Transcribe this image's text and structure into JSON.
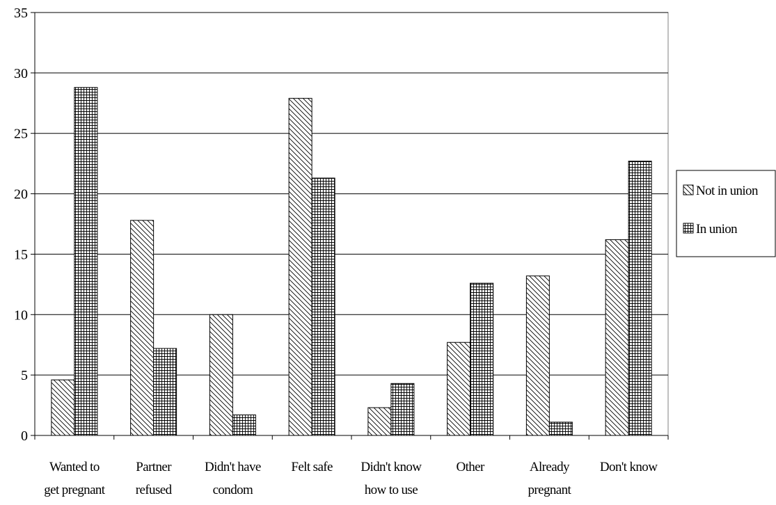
{
  "chart_data": {
    "type": "bar",
    "title": "",
    "xlabel": "",
    "ylabel": "",
    "ylim": [
      0,
      35
    ],
    "yticks": [
      0,
      5,
      10,
      15,
      20,
      25,
      30,
      35
    ],
    "grid": true,
    "legend_position": "right",
    "categories": [
      [
        "Wanted to",
        "get pregnant"
      ],
      [
        "Partner",
        "refused"
      ],
      [
        "Didn't have",
        "condom"
      ],
      [
        "Felt safe"
      ],
      [
        "Didn't know",
        "how to use"
      ],
      [
        "Other"
      ],
      [
        "Already",
        "pregnant"
      ],
      [
        "Don't know"
      ]
    ],
    "series": [
      {
        "name": "Not in union",
        "pattern": "diagonal-hatch",
        "values": [
          4.6,
          17.8,
          10.0,
          27.9,
          2.3,
          7.7,
          13.2,
          16.2
        ]
      },
      {
        "name": "In union",
        "pattern": "grid-hatch",
        "values": [
          28.8,
          7.2,
          1.7,
          21.3,
          4.3,
          12.6,
          1.1,
          22.7
        ]
      }
    ],
    "colors": {
      "bar_stroke": "#000000",
      "gridline": "#000000",
      "background": "#ffffff"
    }
  }
}
